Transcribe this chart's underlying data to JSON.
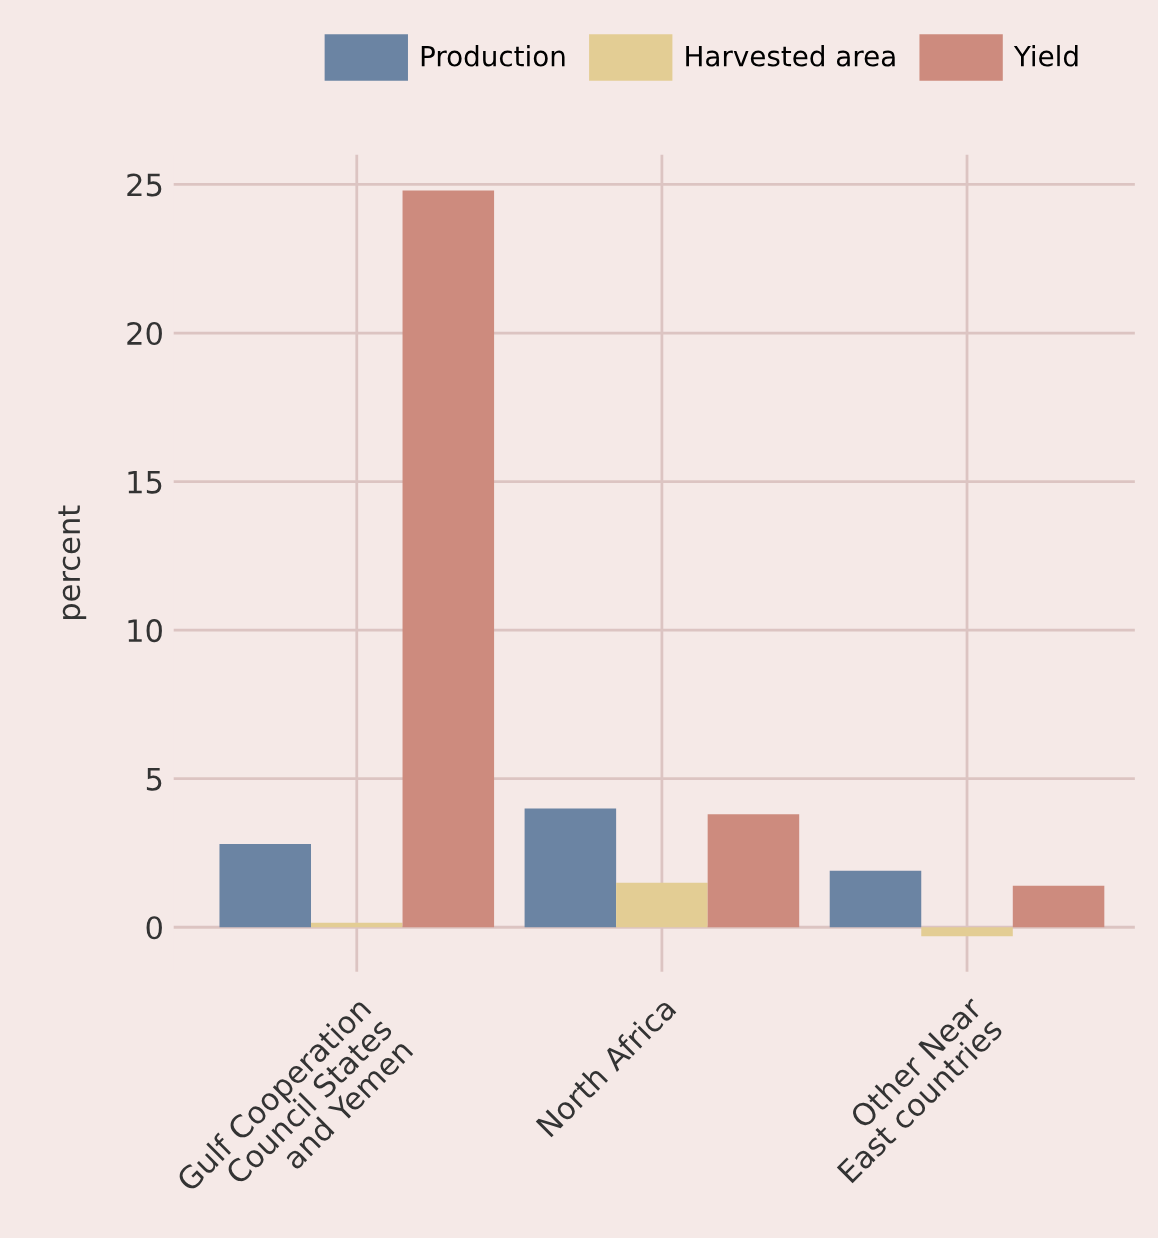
{
  "chart_data": {
    "type": "bar",
    "ylabel": "percent",
    "categories": [
      "Gulf Cooperation\nCouncil States\nand Yemen",
      "North Africa",
      "Other Near\nEast countries"
    ],
    "series": [
      {
        "name": "Production",
        "color": "#6b84a3",
        "values": [
          2.8,
          4.0,
          1.9
        ]
      },
      {
        "name": "Harvested area",
        "color": "#e3cd94",
        "values": [
          0.15,
          1.5,
          -0.3
        ]
      },
      {
        "name": "Yield",
        "color": "#cd8b7e",
        "values": [
          24.8,
          3.8,
          1.4
        ]
      }
    ],
    "ylim": [
      -1.5,
      26
    ],
    "yticks": [
      0,
      5,
      10,
      15,
      20,
      25
    ],
    "grid": true,
    "legend": "top"
  }
}
